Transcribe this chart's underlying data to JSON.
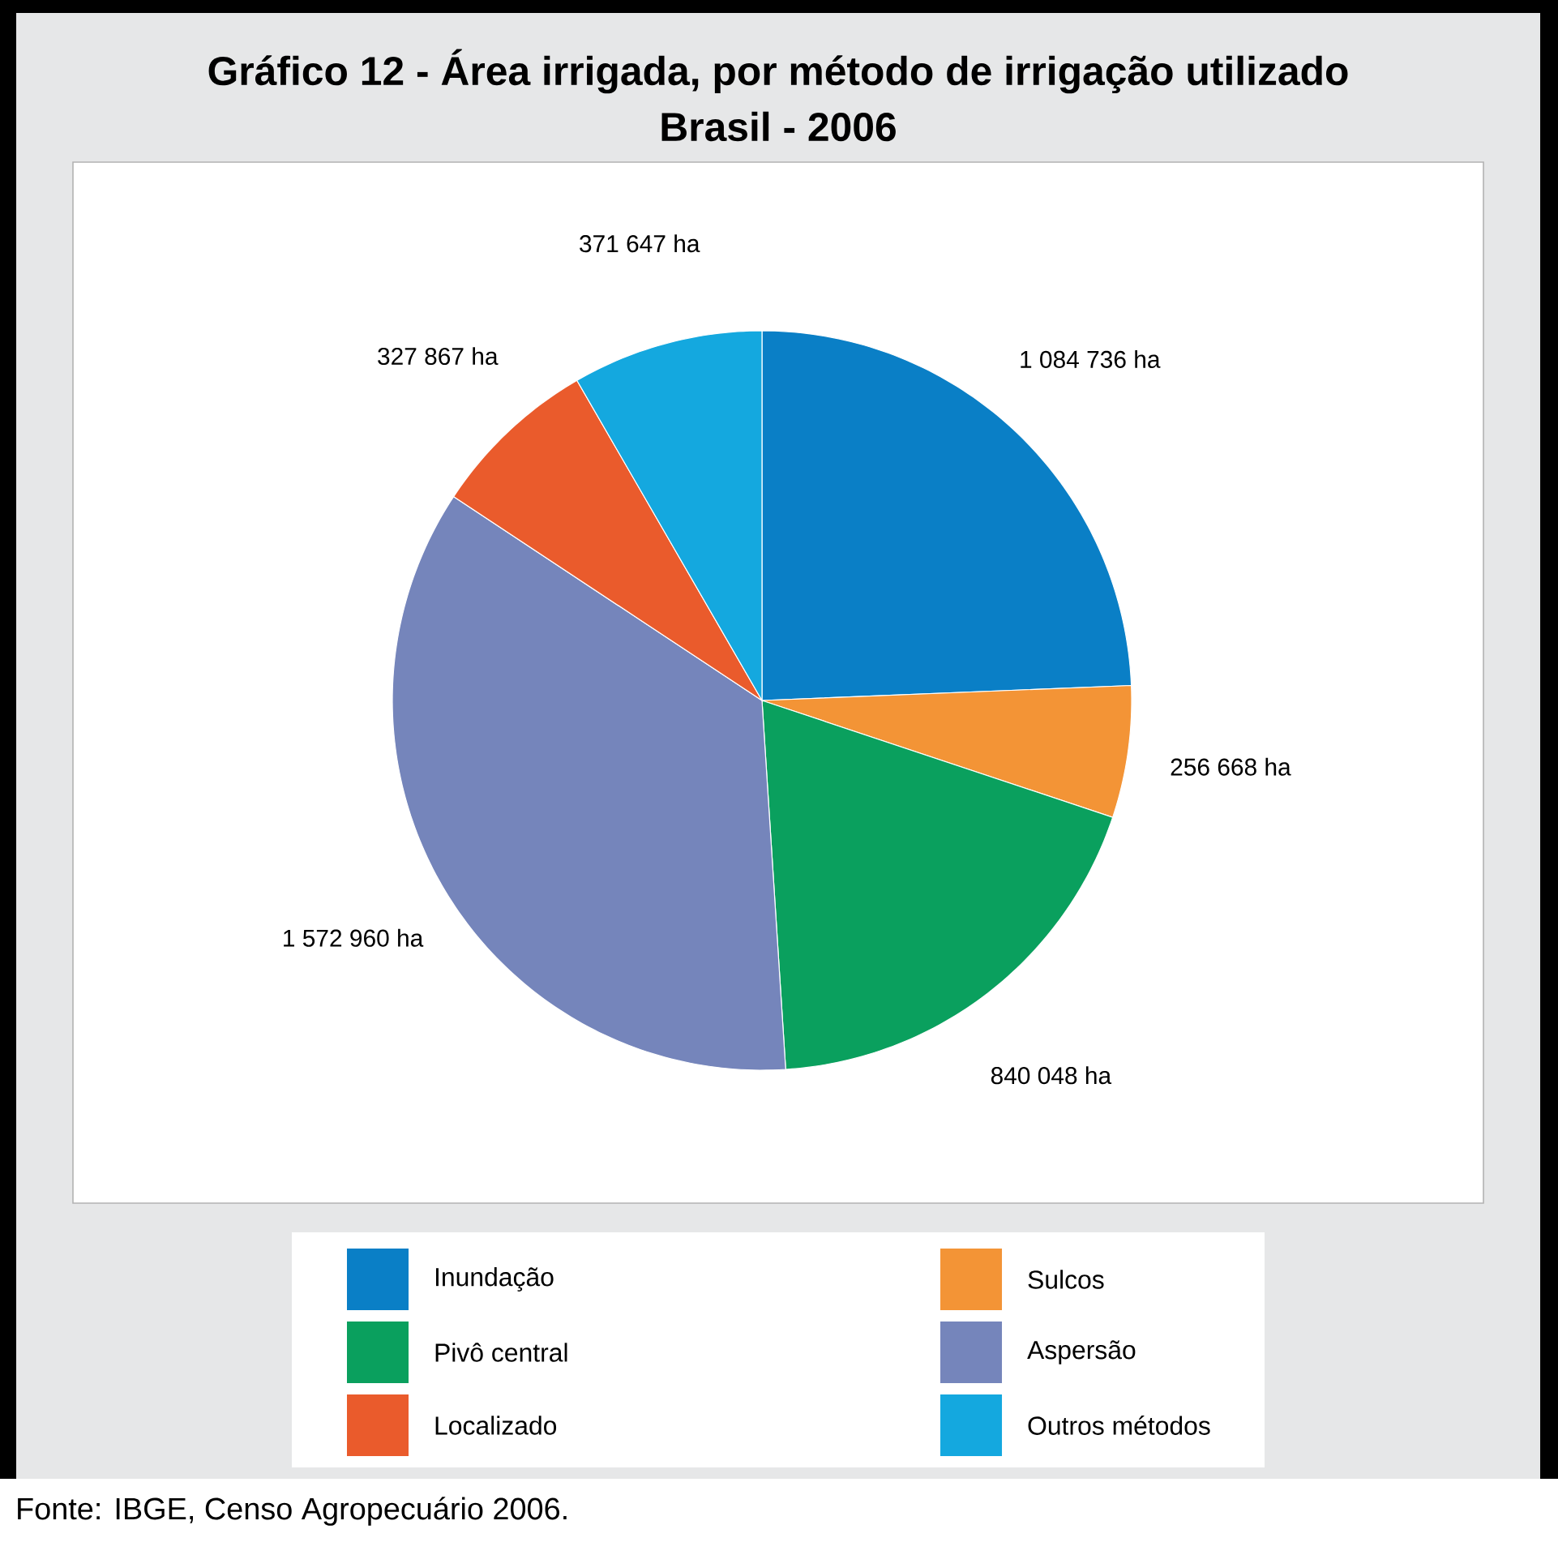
{
  "chart_data": {
    "type": "pie",
    "title": "Gráfico 12 -  Área irrigada, por método de irrigação utilizado",
    "subtitle": "Brasil - 2006",
    "categories": [
      "Inundação",
      "Sulcos",
      "Pivô central",
      "Aspersão",
      "Localizado",
      "Outros métodos"
    ],
    "values": [
      1084736,
      256668,
      840048,
      1572960,
      327867,
      371647
    ],
    "value_labels": [
      "1 084 736 ha",
      "256 668 ha",
      "840 048 ha",
      "1 572 960 ha",
      "327 867 ha",
      "371 647 ha"
    ],
    "colors": [
      "#0a7fc6",
      "#f39436",
      "#0aa05e",
      "#7585bb",
      "#ea5b2c",
      "#14a8df"
    ],
    "legend": "bottom",
    "annotations": [
      "Fonte: IBGE, Censo Agropecuário 2006."
    ]
  }
}
